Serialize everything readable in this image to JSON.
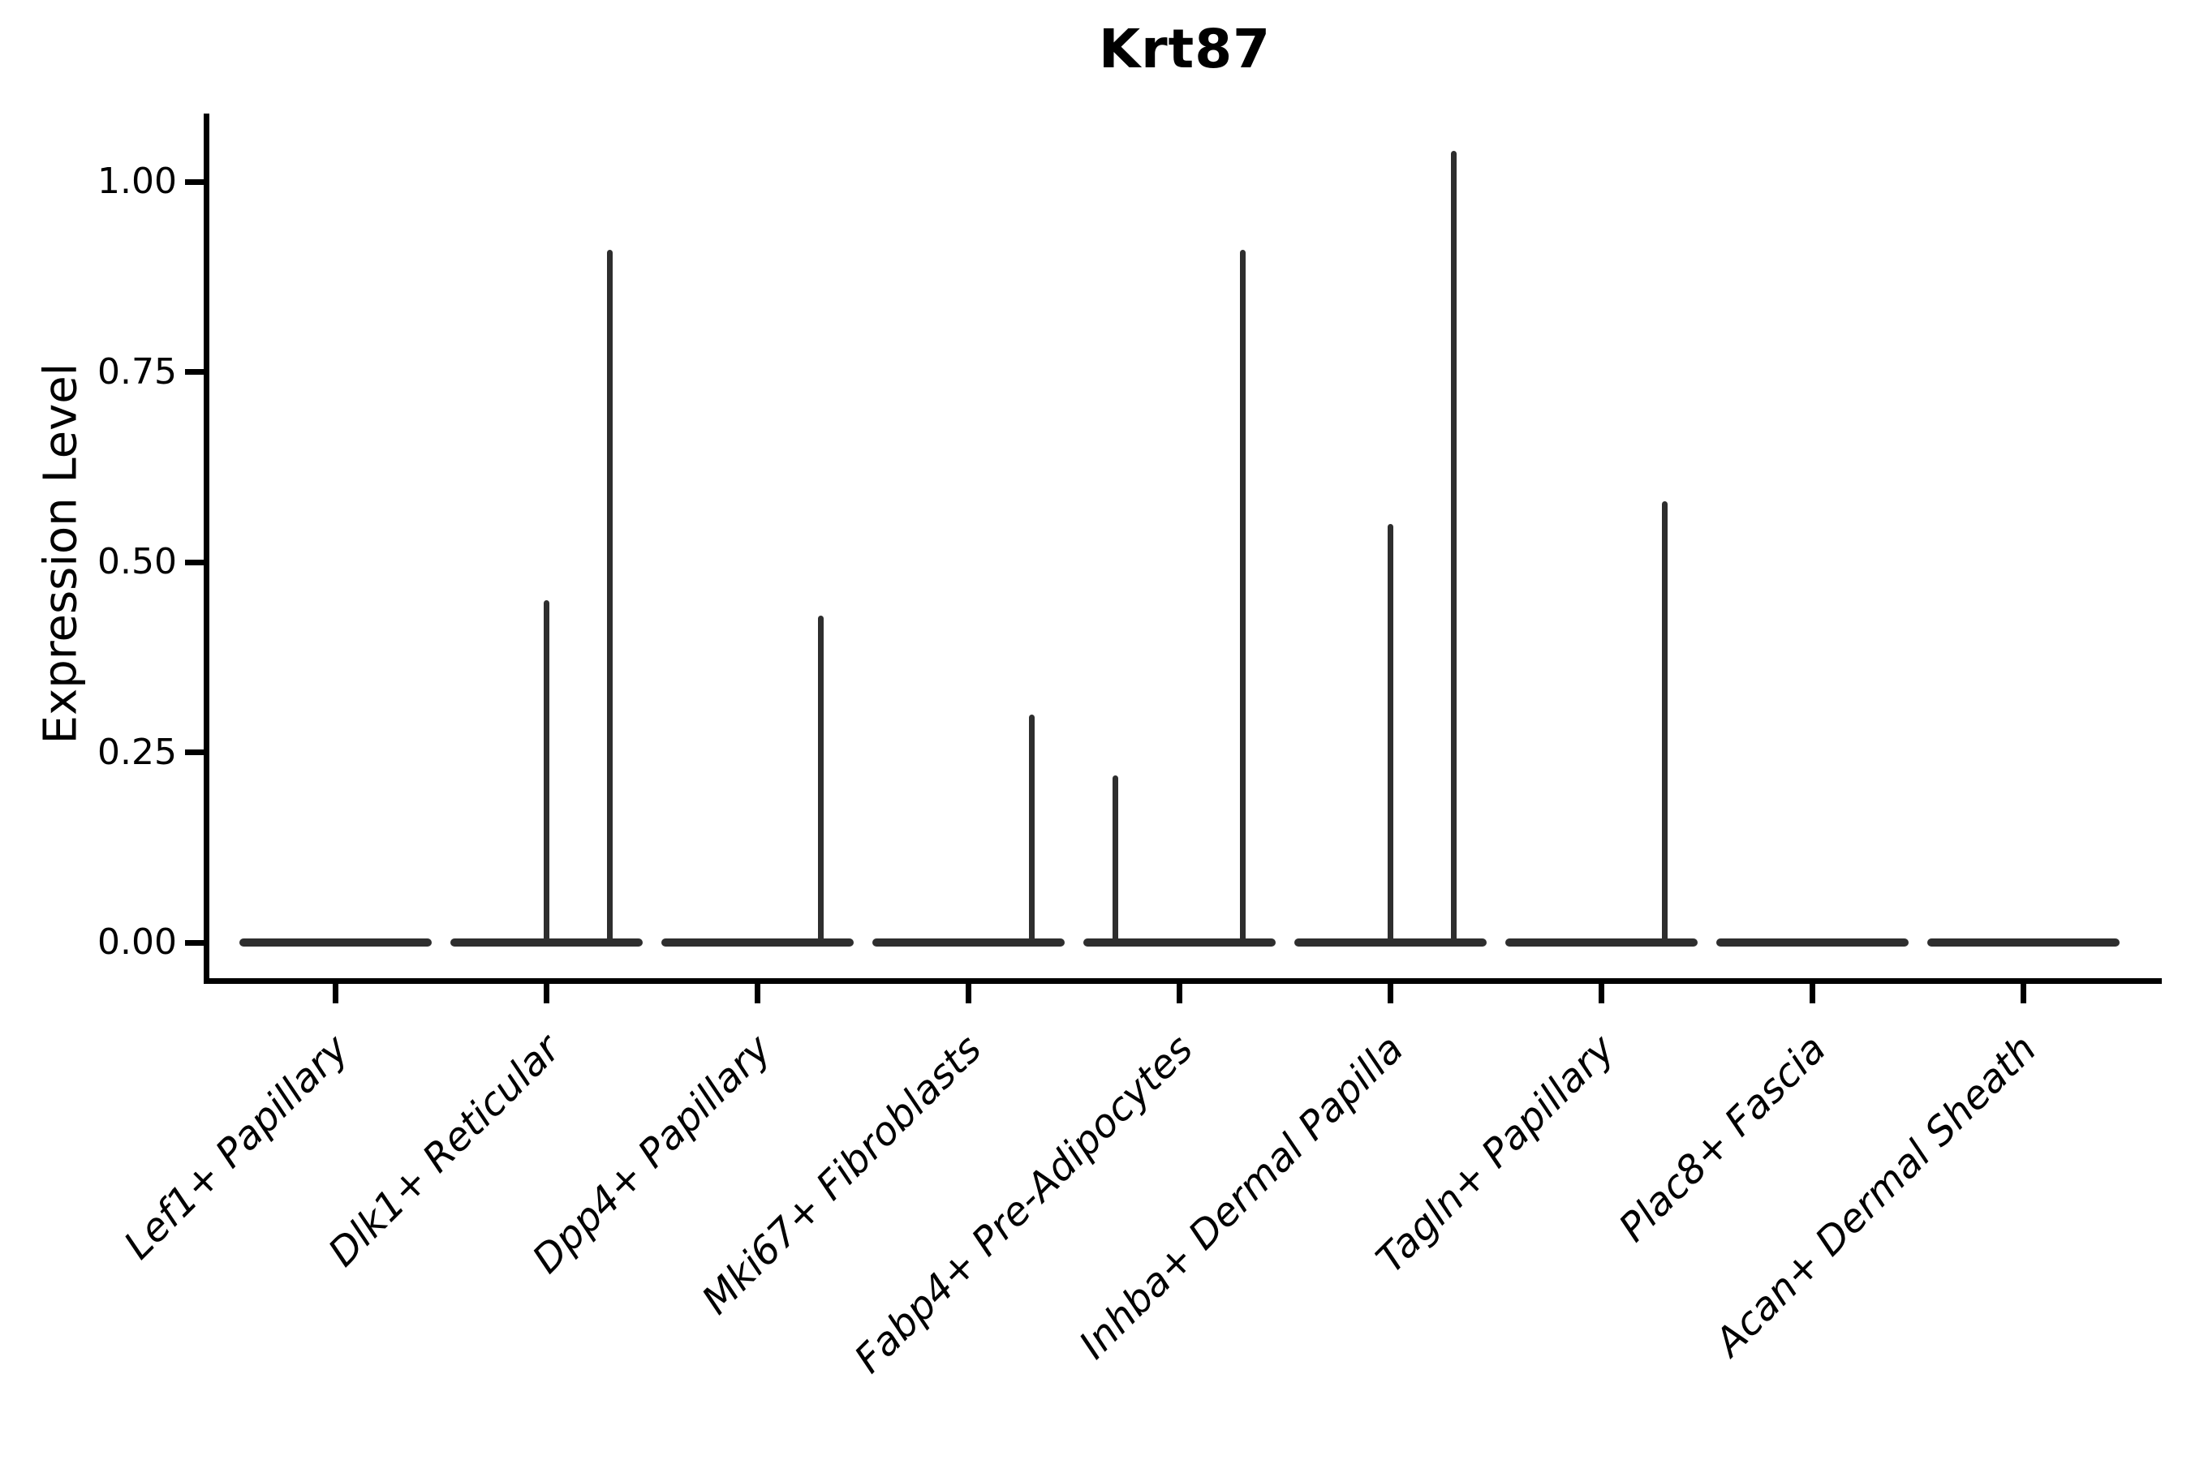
{
  "figure": {
    "title": "Krt87",
    "background_color": "#ffffff",
    "line_color": "#2e2e2e",
    "axis_color": "#000000"
  },
  "chart_data": {
    "type": "violin",
    "title": "Krt87",
    "xlabel": "",
    "ylabel": "Expression Level",
    "ylim": [
      0,
      1.09
    ],
    "grid": false,
    "legend": "none",
    "x_tick_rotation_deg": 45,
    "yticks": {
      "values": [
        1.0,
        0.75,
        0.5,
        0.25,
        0.0
      ],
      "labels": [
        "1.00",
        "0.75",
        "0.50",
        "0.25",
        "0.00"
      ]
    },
    "baseline_value": 0,
    "description": "Each cell type shows a flattened violin at expression 0 with thin density spikes at the listed expression values; spike lateral position is the sub-violin slot (left / center / right) within each category.",
    "categories": [
      {
        "label": "Lef1+ Papillary",
        "spikes": []
      },
      {
        "label": "Dlk1+ Reticular",
        "spikes": [
          {
            "pos": "center",
            "value": 0.45
          },
          {
            "pos": "right",
            "value": 0.91
          }
        ]
      },
      {
        "label": "Dpp4+ Papillary",
        "spikes": [
          {
            "pos": "right",
            "value": 0.43
          }
        ]
      },
      {
        "label": "Mki67+ Fibroblasts",
        "spikes": [
          {
            "pos": "right",
            "value": 0.3
          }
        ]
      },
      {
        "label": "Fabp4+ Pre-Adipocytes",
        "spikes": [
          {
            "pos": "left",
            "value": 0.22
          },
          {
            "pos": "right",
            "value": 0.91
          }
        ]
      },
      {
        "label": "Inhba+ Dermal Papilla",
        "spikes": [
          {
            "pos": "center",
            "value": 0.55
          },
          {
            "pos": "right",
            "value": 1.04
          }
        ]
      },
      {
        "label": "Tagln+ Papillary",
        "spikes": [
          {
            "pos": "right",
            "value": 0.58
          }
        ]
      },
      {
        "label": "Plac8+ Fascia",
        "spikes": []
      },
      {
        "label": "Acan+ Dermal Sheath",
        "spikes": []
      }
    ]
  }
}
